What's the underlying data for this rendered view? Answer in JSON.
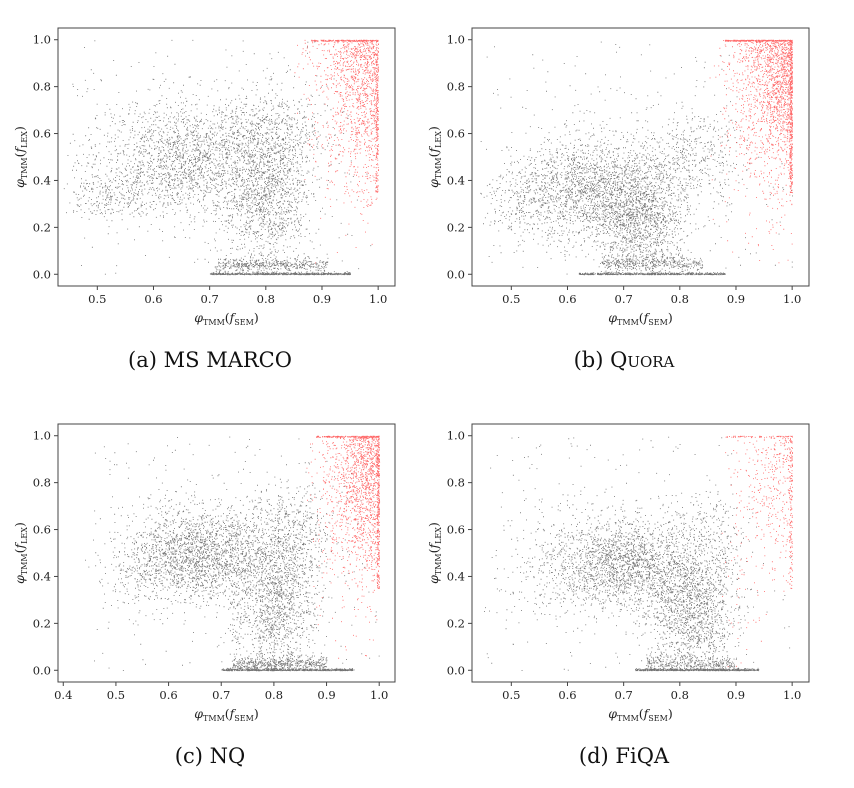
{
  "chart_data": [
    {
      "type": "scatter",
      "panel": "a",
      "caption_prefix": "(a)",
      "caption_name": "MS MARCO",
      "small_caps": false,
      "xlabel": "φTMM(fSEM)",
      "ylabel": "φTMM(fLEX)",
      "xlim": [
        0.43,
        1.03
      ],
      "ylim": [
        -0.05,
        1.05
      ],
      "xticks": [
        0.5,
        0.6,
        0.7,
        0.8,
        0.9,
        1.0
      ],
      "yticks": [
        0.0,
        0.2,
        0.4,
        0.6,
        0.8,
        1.0
      ],
      "grid": false,
      "point_colors": [
        "#000000",
        "#ff0000"
      ],
      "clusters": [
        {
          "cx": 0.66,
          "cy": 0.5,
          "sx": 0.08,
          "sy": 0.12,
          "n": 1900
        },
        {
          "cx": 0.8,
          "cy": 0.33,
          "sx": 0.04,
          "sy": 0.16,
          "n": 1300
        },
        {
          "cx": 0.82,
          "cy": 0.62,
          "sx": 0.06,
          "sy": 0.1,
          "n": 500
        },
        {
          "cx": 0.52,
          "cy": 0.33,
          "sx": 0.04,
          "sy": 0.05,
          "n": 250
        }
      ],
      "floor": {
        "y": 0.0,
        "x_from": 0.7,
        "x_to": 0.95,
        "n": 700
      },
      "floor_band": {
        "cy": 0.04,
        "x_from": 0.71,
        "x_to": 0.91,
        "n": 450
      },
      "red": {
        "x_from": 0.85,
        "n": 1200,
        "edge_n": 180,
        "top_n": 200
      }
    },
    {
      "type": "scatter",
      "panel": "b",
      "caption_prefix": "(b)",
      "caption_name": "Quora",
      "small_caps": true,
      "xlabel": "φTMM(fSEM)",
      "ylabel": "φTMM(fLEX)",
      "xlim": [
        0.43,
        1.03
      ],
      "ylim": [
        -0.05,
        1.05
      ],
      "xticks": [
        0.5,
        0.6,
        0.7,
        0.8,
        0.9,
        1.0
      ],
      "yticks": [
        0.0,
        0.2,
        0.4,
        0.6,
        0.8,
        1.0
      ],
      "grid": false,
      "point_colors": [
        "#000000",
        "#ff0000"
      ],
      "clusters": [
        {
          "cx": 0.64,
          "cy": 0.37,
          "sx": 0.07,
          "sy": 0.11,
          "n": 1900
        },
        {
          "cx": 0.73,
          "cy": 0.22,
          "sx": 0.04,
          "sy": 0.12,
          "n": 1300
        },
        {
          "cx": 0.82,
          "cy": 0.5,
          "sx": 0.05,
          "sy": 0.1,
          "n": 450
        },
        {
          "cx": 0.52,
          "cy": 0.3,
          "sx": 0.04,
          "sy": 0.08,
          "n": 200
        }
      ],
      "floor": {
        "y": 0.0,
        "x_from": 0.62,
        "x_to": 0.88,
        "n": 650
      },
      "floor_band": {
        "cy": 0.05,
        "x_from": 0.66,
        "x_to": 0.84,
        "n": 350
      },
      "red": {
        "x_from": 0.85,
        "n": 1600,
        "edge_n": 350,
        "top_n": 300
      }
    },
    {
      "type": "scatter",
      "panel": "c",
      "caption_prefix": "(c)",
      "caption_name": "NQ",
      "small_caps": false,
      "xlabel": "φTMM(fSEM)",
      "ylabel": "φTMM(fLEX)",
      "xlim": [
        0.39,
        1.03
      ],
      "ylim": [
        -0.05,
        1.05
      ],
      "xticks": [
        0.4,
        0.5,
        0.6,
        0.7,
        0.8,
        0.9,
        1.0
      ],
      "yticks": [
        0.0,
        0.2,
        0.4,
        0.6,
        0.8,
        1.0
      ],
      "grid": false,
      "point_colors": [
        "#000000",
        "#ff0000"
      ],
      "clusters": [
        {
          "cx": 0.66,
          "cy": 0.5,
          "sx": 0.07,
          "sy": 0.1,
          "n": 2000
        },
        {
          "cx": 0.8,
          "cy": 0.3,
          "sx": 0.04,
          "sy": 0.15,
          "n": 1400
        },
        {
          "cx": 0.84,
          "cy": 0.6,
          "sx": 0.05,
          "sy": 0.1,
          "n": 500
        },
        {
          "cx": 0.55,
          "cy": 0.42,
          "sx": 0.04,
          "sy": 0.08,
          "n": 200
        }
      ],
      "floor": {
        "y": 0.0,
        "x_from": 0.7,
        "x_to": 0.95,
        "n": 700
      },
      "floor_band": {
        "cy": 0.03,
        "x_from": 0.72,
        "x_to": 0.9,
        "n": 500
      },
      "red": {
        "x_from": 0.86,
        "n": 1400,
        "edge_n": 220,
        "top_n": 180
      }
    },
    {
      "type": "scatter",
      "panel": "d",
      "caption_prefix": "(d)",
      "caption_name": "FiQA",
      "small_caps": false,
      "xlabel": "φTMM(fSEM)",
      "ylabel": "φTMM(fLEX)",
      "xlim": [
        0.43,
        1.03
      ],
      "ylim": [
        -0.05,
        1.05
      ],
      "xticks": [
        0.5,
        0.6,
        0.7,
        0.8,
        0.9,
        1.0
      ],
      "yticks": [
        0.0,
        0.2,
        0.4,
        0.6,
        0.8,
        1.0
      ],
      "grid": false,
      "point_colors": [
        "#000000",
        "#ff0000"
      ],
      "clusters": [
        {
          "cx": 0.7,
          "cy": 0.45,
          "sx": 0.06,
          "sy": 0.1,
          "n": 1800
        },
        {
          "cx": 0.82,
          "cy": 0.25,
          "sx": 0.04,
          "sy": 0.13,
          "n": 1400
        },
        {
          "cx": 0.84,
          "cy": 0.52,
          "sx": 0.05,
          "sy": 0.12,
          "n": 450
        },
        {
          "cx": 0.58,
          "cy": 0.45,
          "sx": 0.05,
          "sy": 0.12,
          "n": 250
        }
      ],
      "floor": {
        "y": 0.0,
        "x_from": 0.72,
        "x_to": 0.94,
        "n": 700
      },
      "floor_band": {
        "cy": 0.03,
        "x_from": 0.74,
        "x_to": 0.9,
        "n": 300
      },
      "red": {
        "x_from": 0.88,
        "n": 350,
        "edge_n": 120,
        "top_n": 60
      }
    }
  ]
}
